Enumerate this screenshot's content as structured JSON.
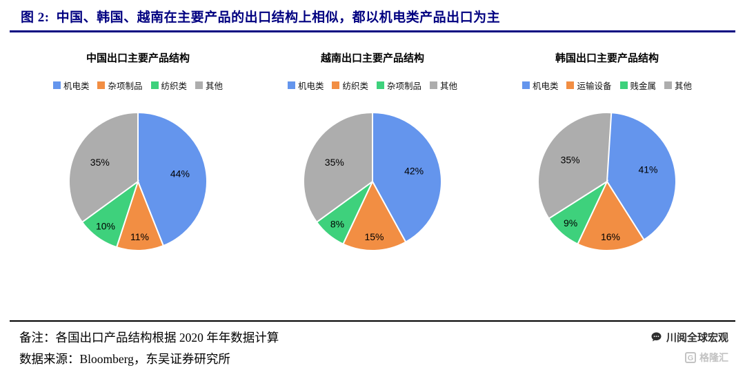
{
  "header": {
    "prefix": "图 2:",
    "title": "中国、韩国、越南在主要产品的出口结构上相似，都以机电类产品出口为主",
    "accent_color": "#000080"
  },
  "chart_data": [
    {
      "type": "pie",
      "title": "中国出口主要产品结构",
      "labels": [
        "机电类",
        "杂项制品",
        "纺织类",
        "其他"
      ],
      "values": [
        44,
        11,
        10,
        35
      ],
      "colors": [
        "#6495ED",
        "#F28E43",
        "#3ED17C",
        "#ADADAD"
      ],
      "legend_position": "top",
      "start_angle_deg": 0,
      "direction": "clockwise",
      "data_labels": [
        "44%",
        "11%",
        "10%",
        "35%"
      ]
    },
    {
      "type": "pie",
      "title": "越南出口主要产品结构",
      "labels": [
        "机电类",
        "纺织类",
        "杂项制品",
        "其他"
      ],
      "values": [
        42,
        15,
        8,
        35
      ],
      "colors": [
        "#6495ED",
        "#F28E43",
        "#3ED17C",
        "#ADADAD"
      ],
      "legend_position": "top",
      "start_angle_deg": 0,
      "direction": "clockwise",
      "data_labels": [
        "42%",
        "15%",
        "8%",
        "35%"
      ]
    },
    {
      "type": "pie",
      "title": "韩国出口主要产品结构",
      "labels": [
        "机电类",
        "运输设备",
        "贱金属",
        "其他"
      ],
      "values": [
        41,
        16,
        9,
        35
      ],
      "colors": [
        "#6495ED",
        "#F28E43",
        "#3ED17C",
        "#ADADAD"
      ],
      "legend_position": "top",
      "start_angle_deg": 0,
      "direction": "clockwise",
      "data_labels": [
        "41%",
        "16%",
        "9%",
        "35%"
      ]
    }
  ],
  "footer": {
    "note_line1": "备注：各国出口产品结构根据 2020 年年数据计算",
    "note_line2": "数据来源：Bloomberg，东吴证券研究所",
    "watermark_text": "川阅全球宏观",
    "logo_text": "格隆汇",
    "logo_letter": "G"
  }
}
